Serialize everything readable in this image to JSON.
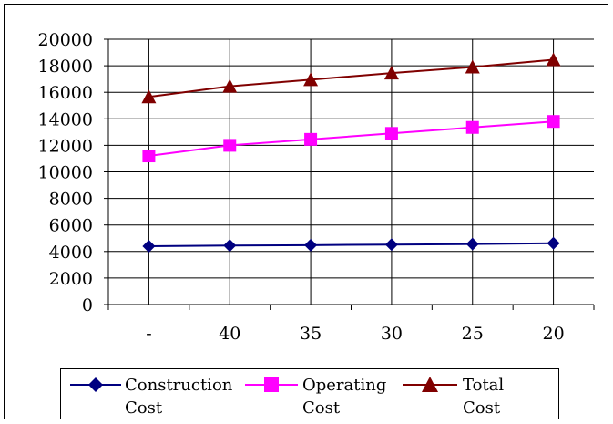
{
  "chart_data": {
    "type": "line",
    "categories": [
      "-",
      "40",
      "35",
      "30",
      "25",
      "20"
    ],
    "series": [
      {
        "name": "Construction Cost",
        "color": "#000080",
        "marker": "diamond",
        "values": [
          4400,
          4450,
          4480,
          4520,
          4560,
          4620
        ]
      },
      {
        "name": "Operating Cost",
        "color": "#ff00ff",
        "marker": "square",
        "values": [
          11200,
          12000,
          12450,
          12900,
          13350,
          13800
        ]
      },
      {
        "name": "Total Cost",
        "color": "#800000",
        "marker": "triangle",
        "values": [
          15650,
          16450,
          16950,
          17450,
          17900,
          18450
        ]
      }
    ],
    "ylim": [
      0,
      20000
    ],
    "yticks": [
      0,
      2000,
      4000,
      6000,
      8000,
      10000,
      12000,
      14000,
      16000,
      18000,
      20000
    ],
    "grid": true,
    "legend_position": "bottom"
  },
  "legend": {
    "items": [
      {
        "line1": "Construction",
        "line2": "Cost"
      },
      {
        "line1": "Operating",
        "line2": "Cost"
      },
      {
        "line1": "Total Cost",
        "line2": ""
      }
    ]
  }
}
